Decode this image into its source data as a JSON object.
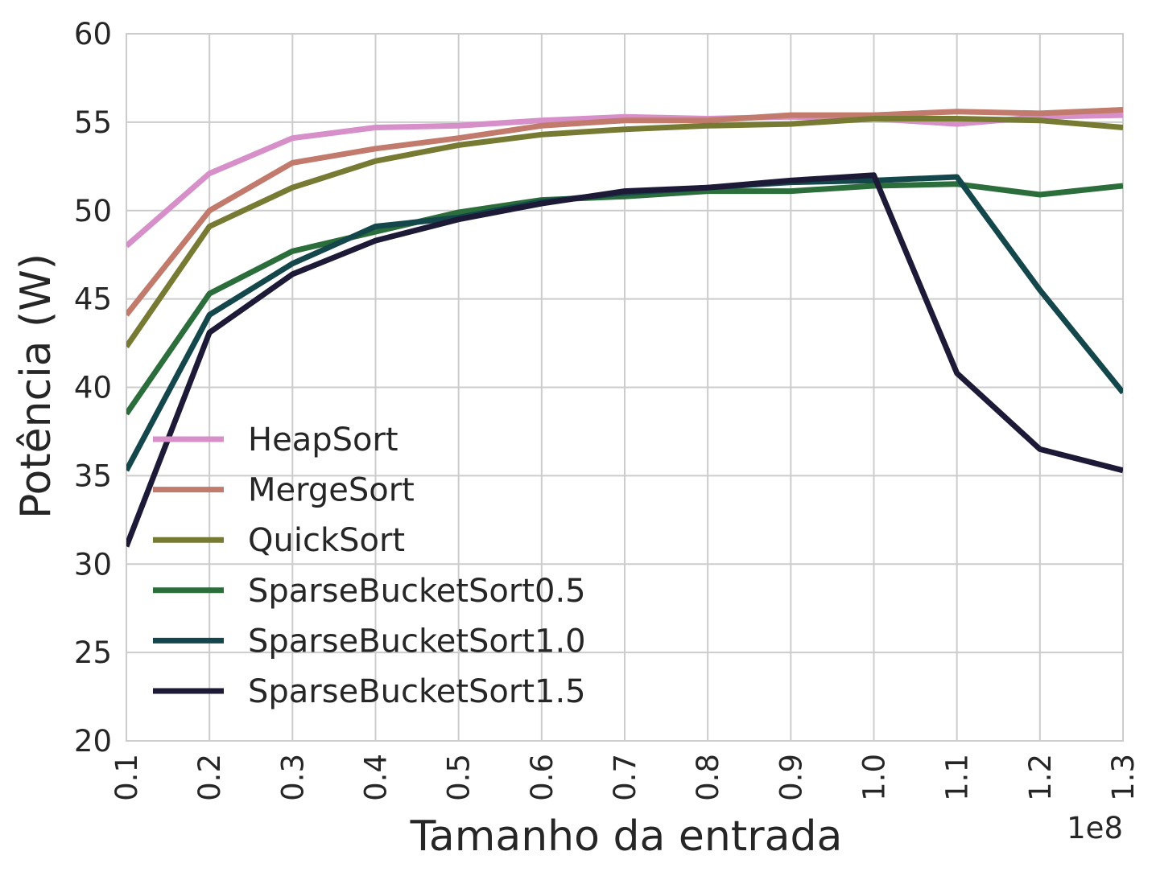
{
  "chart_data": {
    "type": "line",
    "title": "",
    "xlabel": "Tamanho da entrada",
    "ylabel": "Potência (W)",
    "x_offset_label": "1e8",
    "x": [
      0.1,
      0.2,
      0.3,
      0.4,
      0.5,
      0.6,
      0.7,
      0.8,
      0.9,
      1.0,
      1.1,
      1.2,
      1.3
    ],
    "x_tick_labels": [
      "0.1",
      "0.2",
      "0.3",
      "0.4",
      "0.5",
      "0.6",
      "0.7",
      "0.8",
      "0.9",
      "1.0",
      "1.1",
      "1.2",
      "1.3"
    ],
    "y_ticks": [
      20,
      25,
      30,
      35,
      40,
      45,
      50,
      55,
      60
    ],
    "y_tick_labels": [
      "20",
      "25",
      "30",
      "35",
      "40",
      "45",
      "50",
      "55",
      "60"
    ],
    "xlim": [
      0.1,
      1.3
    ],
    "ylim": [
      20,
      60
    ],
    "grid": true,
    "legend_position": "lower-left",
    "series": [
      {
        "name": "HeapSort",
        "color": "#d68fc8",
        "values": [
          48.0,
          52.1,
          54.1,
          54.7,
          54.8,
          55.1,
          55.3,
          55.2,
          55.3,
          55.2,
          54.9,
          55.3,
          55.4
        ]
      },
      {
        "name": "MergeSort",
        "color": "#c17a6b",
        "values": [
          44.1,
          50.0,
          52.7,
          53.5,
          54.1,
          54.8,
          55.1,
          55.1,
          55.4,
          55.4,
          55.6,
          55.5,
          55.7
        ]
      },
      {
        "name": "QuickSort",
        "color": "#777a33",
        "values": [
          42.3,
          49.1,
          51.3,
          52.8,
          53.7,
          54.3,
          54.6,
          54.8,
          54.9,
          55.2,
          55.2,
          55.1,
          54.7
        ]
      },
      {
        "name": "SparseBucketSort0.5",
        "color": "#2b6e3b",
        "values": [
          38.5,
          45.3,
          47.7,
          48.8,
          49.9,
          50.6,
          50.8,
          51.1,
          51.1,
          51.4,
          51.5,
          50.9,
          51.4
        ]
      },
      {
        "name": "SparseBucketSort1.0",
        "color": "#14474b",
        "values": [
          35.3,
          44.1,
          47.0,
          49.1,
          49.6,
          50.5,
          51.0,
          51.3,
          51.6,
          51.7,
          51.9,
          45.5,
          39.7
        ]
      },
      {
        "name": "SparseBucketSort1.5",
        "color": "#1c1a36",
        "values": [
          31.0,
          43.1,
          46.4,
          48.3,
          49.5,
          50.4,
          51.1,
          51.3,
          51.7,
          52.0,
          40.8,
          36.5,
          35.3
        ]
      }
    ]
  }
}
